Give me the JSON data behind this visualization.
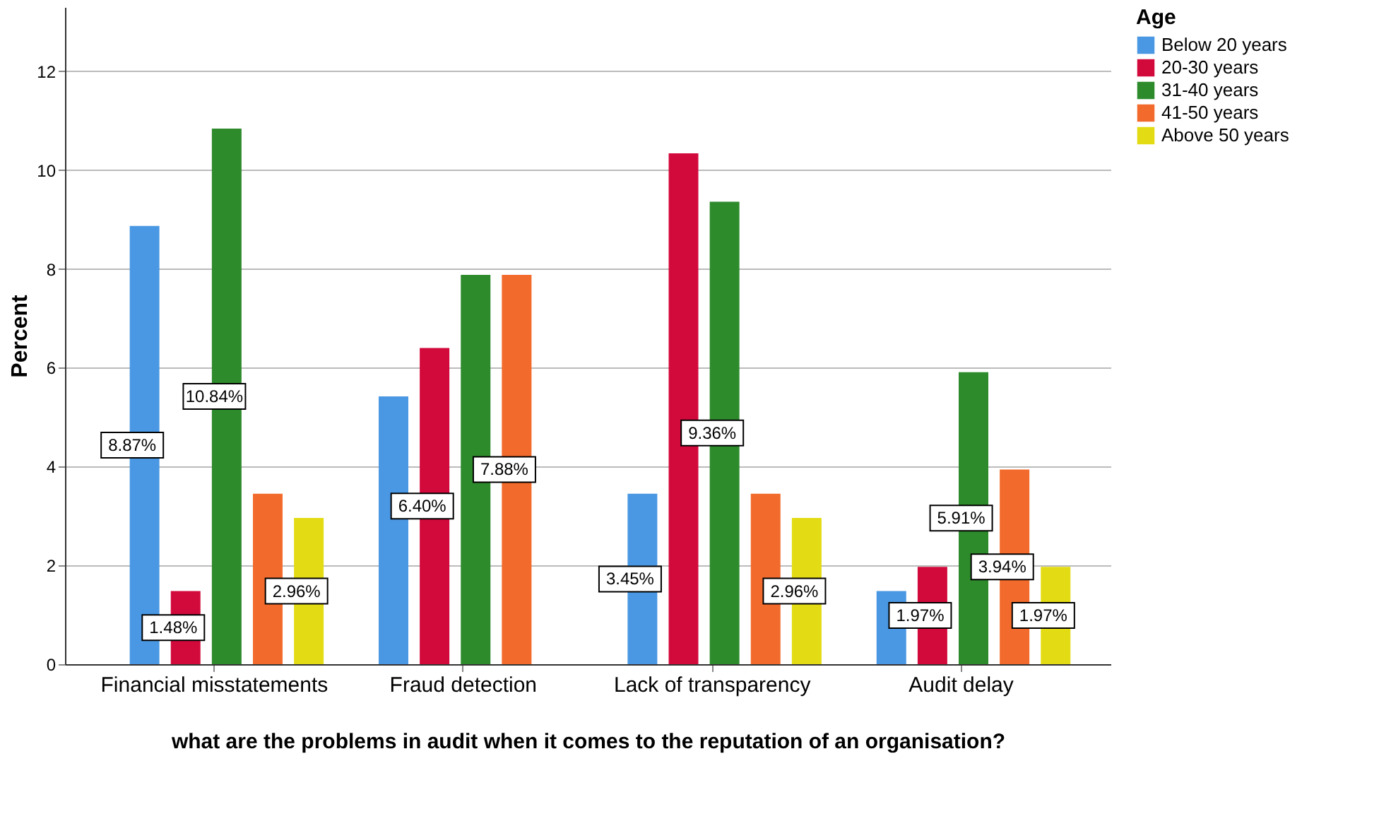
{
  "chart_data": {
    "type": "bar",
    "xlabel": "what are the problems in audit when it comes to the reputation of an organisation?",
    "ylabel": "Percent",
    "legend_title": "Age",
    "legend": "top right",
    "grid": "y",
    "categories": [
      "Financial misstatements",
      "Fraud detection",
      "Lack of transparency",
      "Audit delay"
    ],
    "ylim": [
      0,
      13.3
    ],
    "yticks": [
      0,
      2,
      4,
      6,
      8,
      10,
      12
    ],
    "series": [
      {
        "name": "Below 20 years",
        "color": "#4a98e3",
        "values": [
          8.87,
          5.42,
          3.45,
          1.48
        ],
        "value_labels": [
          "8.87%",
          null,
          "3.45%",
          null
        ]
      },
      {
        "name": "20-30 years",
        "color": "#d20a3c",
        "values": [
          1.48,
          6.4,
          10.34,
          1.97
        ],
        "value_labels": [
          "1.48%",
          "6.40%",
          null,
          "1.97%"
        ]
      },
      {
        "name": "31-40 years",
        "color": "#2e8b2c",
        "values": [
          10.84,
          7.88,
          9.36,
          5.91
        ],
        "value_labels": [
          "10.84%",
          null,
          "9.36%",
          "5.91%"
        ]
      },
      {
        "name": "41-50 years",
        "color": "#f36b2c",
        "values": [
          3.45,
          7.88,
          3.45,
          3.94
        ],
        "value_labels": [
          null,
          "7.88%",
          null,
          "3.94%"
        ]
      },
      {
        "name": "Above 50 years",
        "color": "#e3dc14",
        "values": [
          2.96,
          null,
          2.96,
          1.97
        ],
        "value_labels": [
          "2.96%",
          null,
          "2.96%",
          "1.97%"
        ]
      }
    ]
  }
}
